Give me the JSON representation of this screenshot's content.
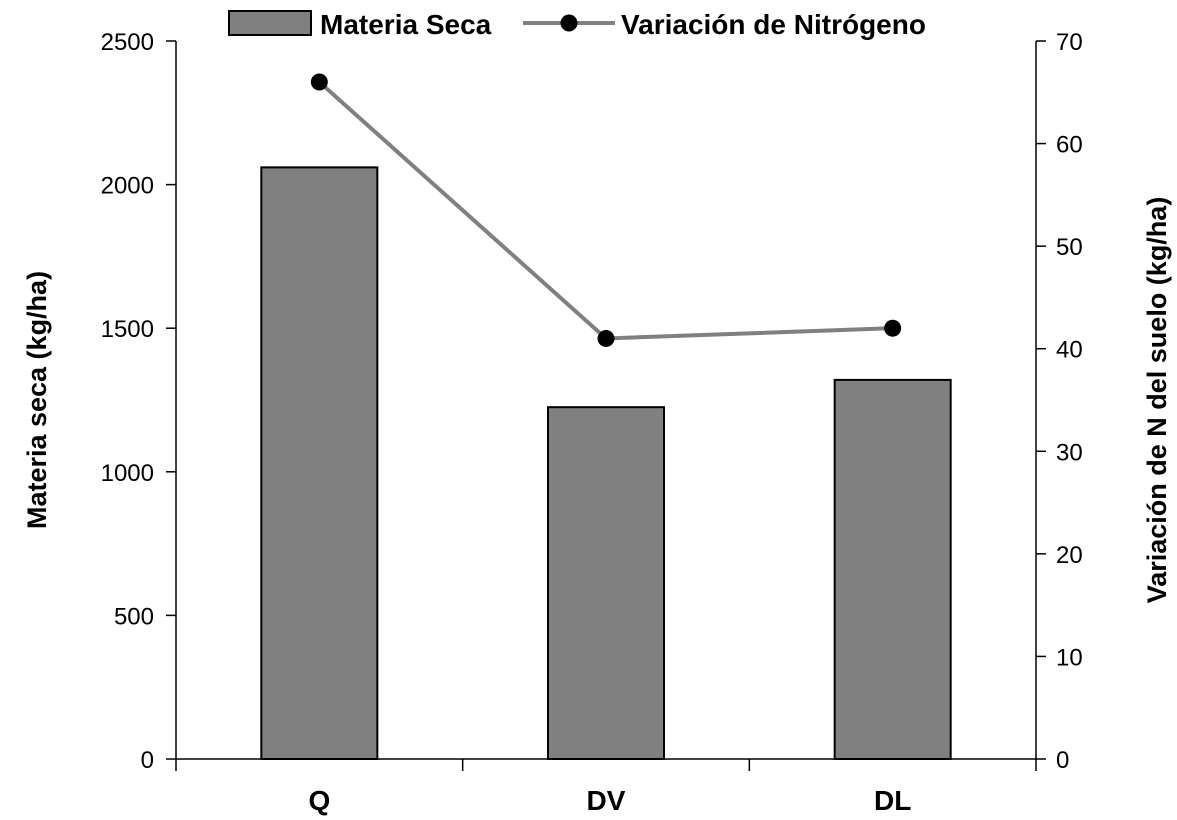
{
  "chart_data": {
    "type": "bar",
    "categories": [
      "Q",
      "DV",
      "DL"
    ],
    "series": [
      {
        "name": "Materia Seca",
        "kind": "bar",
        "axis": "left",
        "color": "#808080",
        "values": [
          2060,
          1225,
          1320
        ]
      },
      {
        "name": "Variación de Nitrógeno",
        "kind": "line",
        "axis": "right",
        "color": "#808080",
        "marker_color": "#000000",
        "values": [
          66,
          41,
          42
        ]
      }
    ],
    "ylabel": "Materia seca (kg/ha)",
    "y2label": "Variación de N del suelo (kg/ha)",
    "ylim": [
      0,
      2500
    ],
    "y2lim": [
      0,
      70
    ],
    "yticks": [
      0,
      500,
      1000,
      1500,
      2000,
      2500
    ],
    "y2ticks": [
      0,
      10,
      20,
      30,
      40,
      50,
      60,
      70
    ],
    "grid": false,
    "legend_position": "top"
  }
}
